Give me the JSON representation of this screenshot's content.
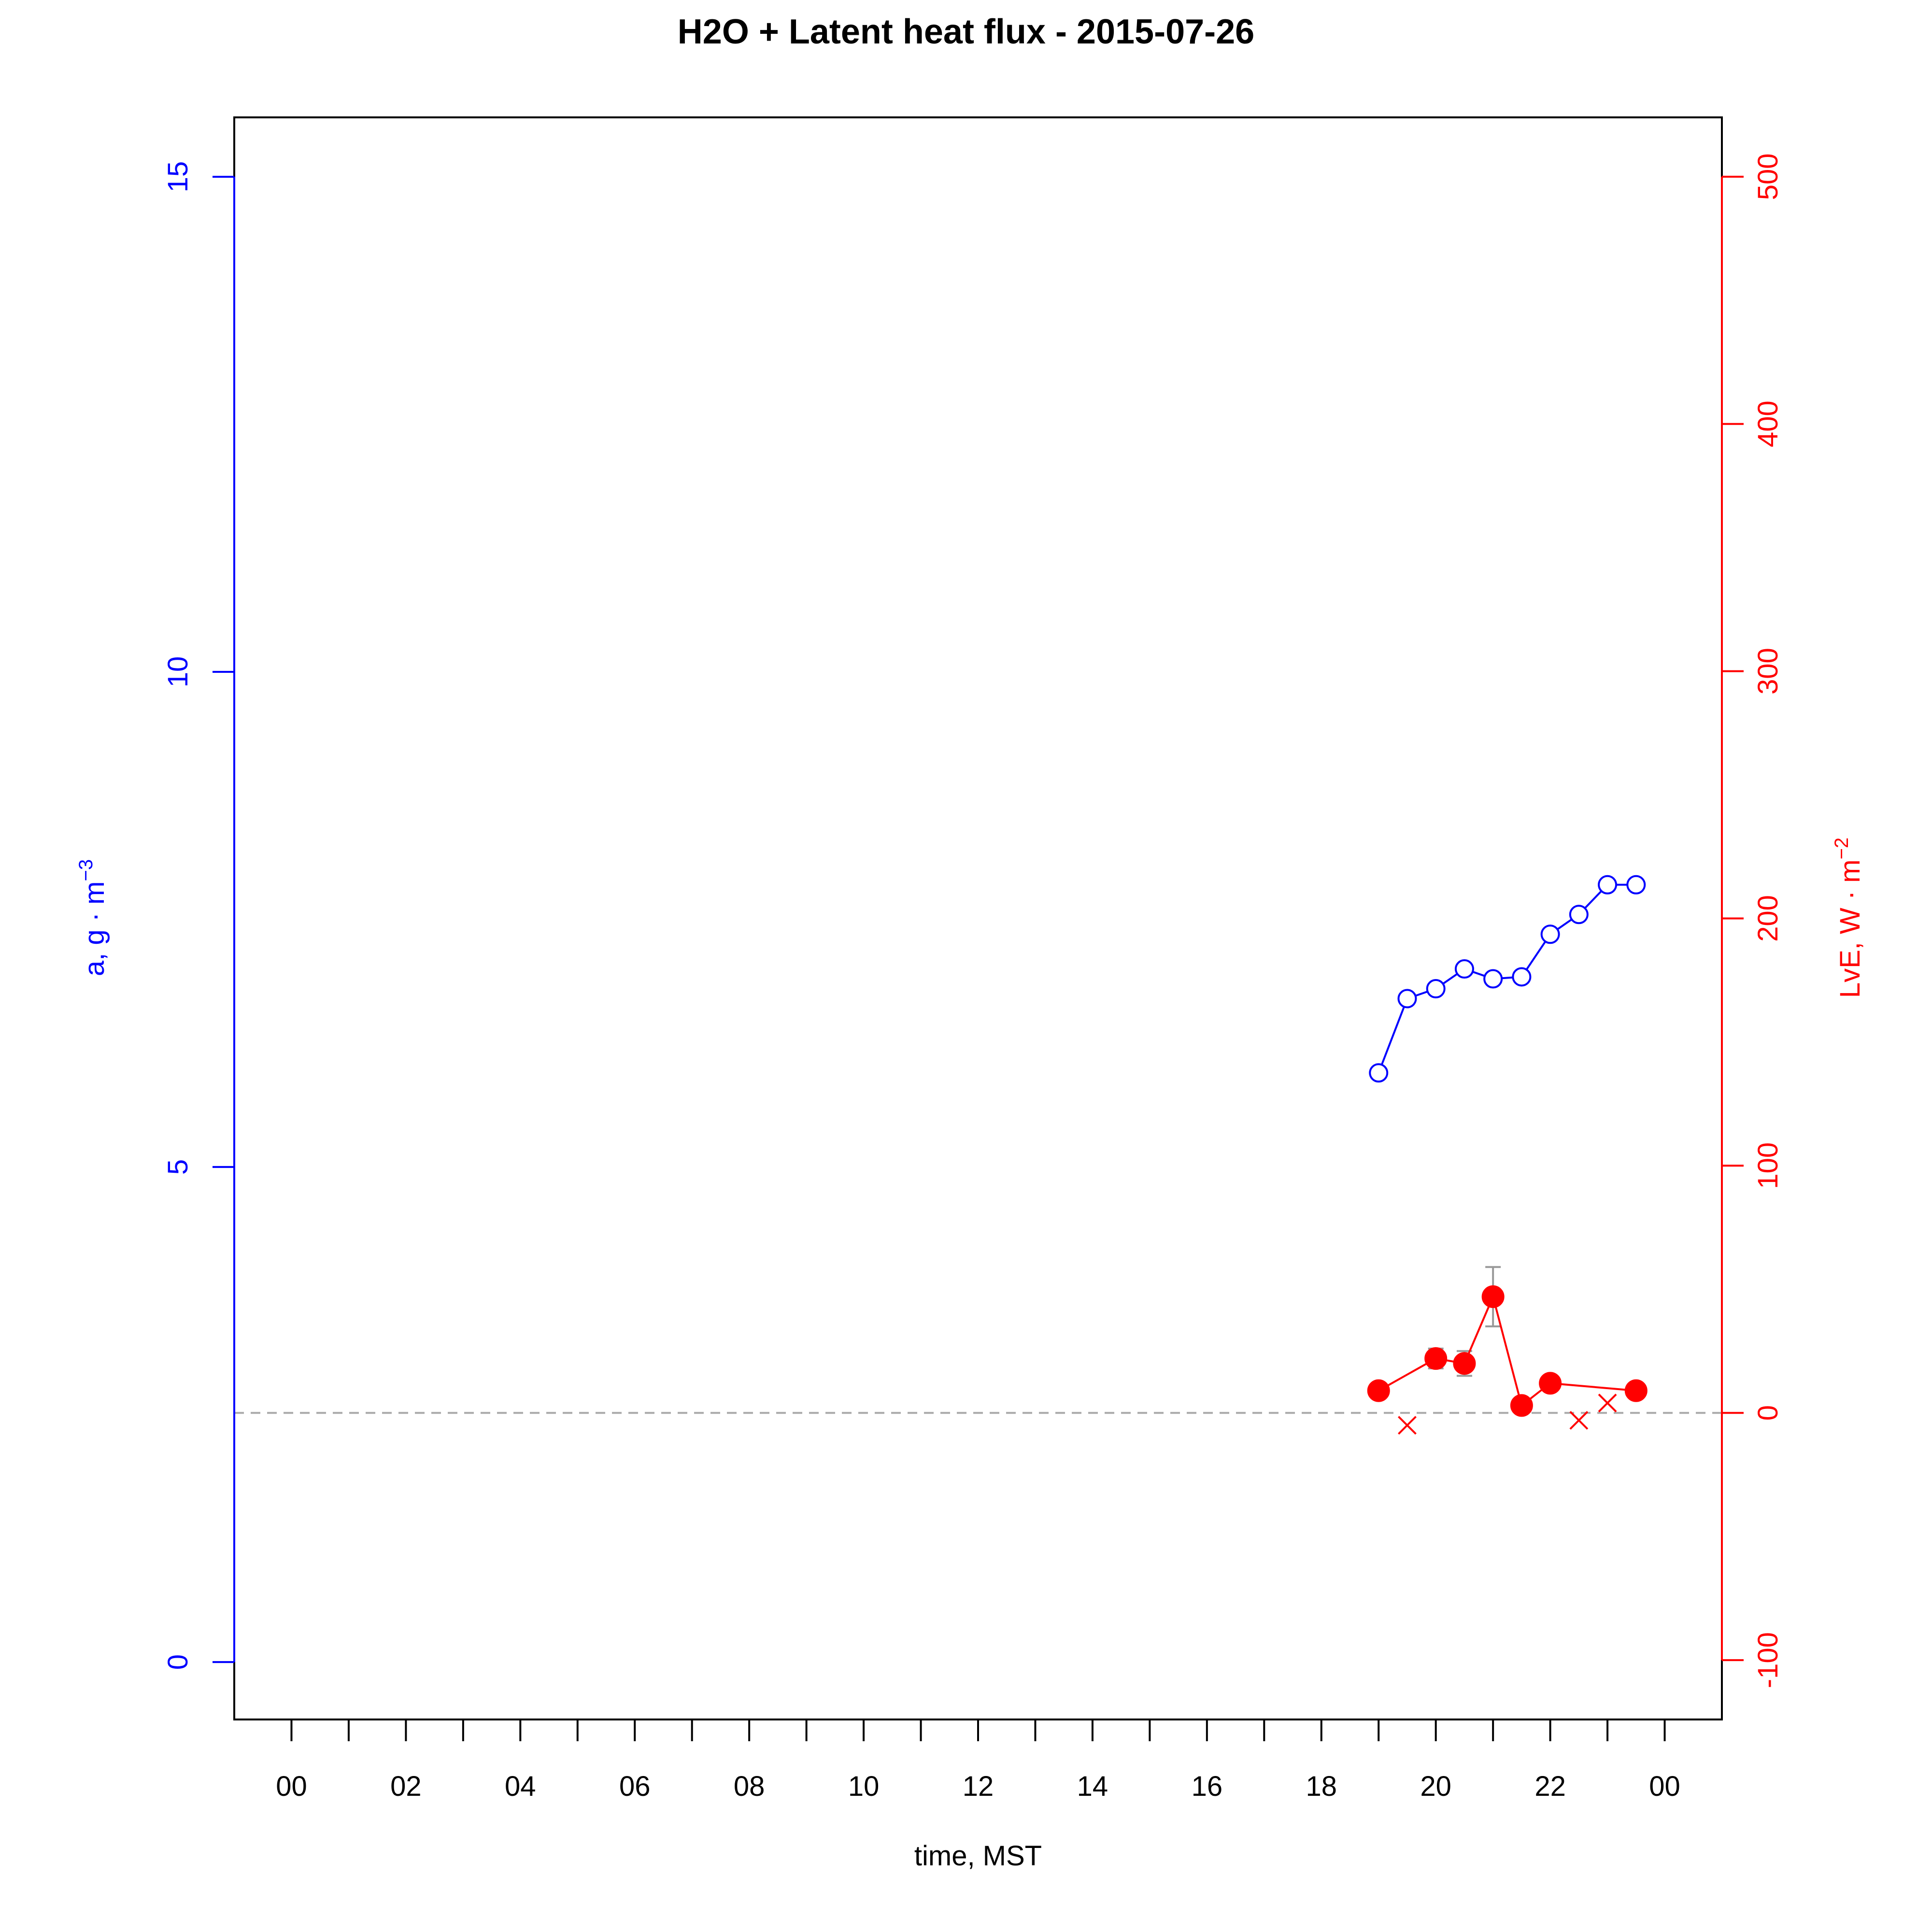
{
  "chart_data": {
    "type": "line",
    "title": "H2O + Latent heat flux -  2015-07-26",
    "xlabel": "time, MST",
    "x_tick_labels": [
      "00",
      "02",
      "04",
      "06",
      "08",
      "10",
      "12",
      "14",
      "16",
      "18",
      "20",
      "22",
      "00"
    ],
    "xlim_hours": [
      -1,
      25
    ],
    "y_left": {
      "label": "a, g · m⁻³",
      "label_base": "a, g · m",
      "label_sup": "−3",
      "color": "#0000ff",
      "ticks": [
        "0",
        "5",
        "10",
        "15"
      ],
      "ylim": [
        -0.58,
        15.6
      ]
    },
    "y_right": {
      "label": "LvE, W · m⁻²",
      "label_base": "LvE, W · m",
      "label_sup": "−2",
      "color": "#ff0000",
      "ticks": [
        "-100",
        "0",
        "100",
        "200",
        "300",
        "400",
        "500"
      ],
      "ylim": [
        -124,
        524
      ]
    },
    "zero_line": {
      "value": 0,
      "axis": "right",
      "color": "#aaaaaa",
      "style": "dashed"
    },
    "series": [
      {
        "axis": "left",
        "color": "#0000ff",
        "marker": "open-circle",
        "x": [
          19.0,
          19.5,
          20.0,
          20.5,
          21.0,
          21.5,
          22.0,
          22.5,
          23.0,
          23.5
        ],
        "y": [
          5.95,
          6.7,
          6.8,
          7.0,
          6.9,
          6.92,
          7.35,
          7.55,
          7.85,
          7.85
        ]
      },
      {
        "axis": "right",
        "color": "#ff0000",
        "marker": "filled-circle",
        "x": [
          19.0,
          20.0,
          20.5,
          21.0,
          21.5,
          22.0,
          23.5
        ],
        "y": [
          9,
          22,
          20,
          47,
          3,
          12,
          9
        ],
        "error": [
          0,
          4,
          5,
          12,
          0,
          2,
          0
        ]
      },
      {
        "axis": "right",
        "color": "#ff0000",
        "marker": "cross",
        "x": [
          19.5,
          22.5,
          23.0
        ],
        "y": [
          -5,
          -3,
          4
        ]
      }
    ]
  }
}
